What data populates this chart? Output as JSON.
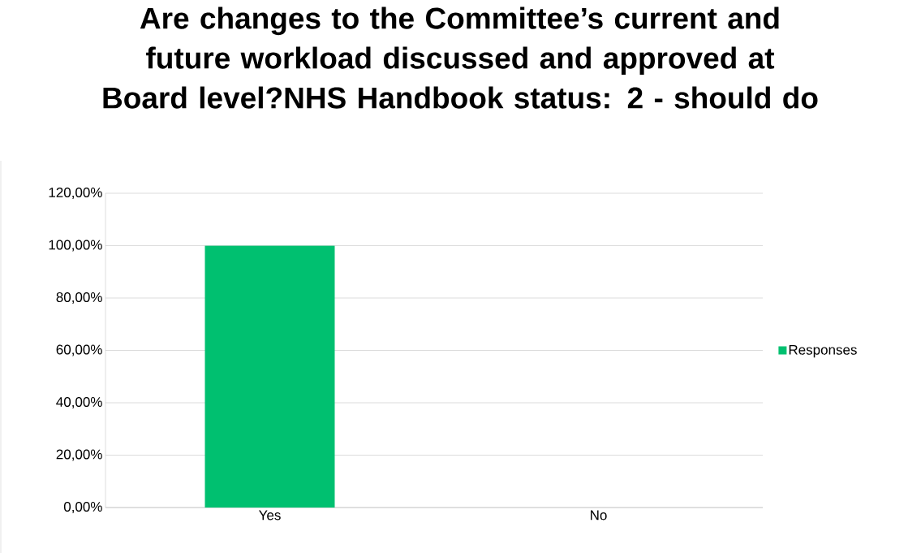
{
  "chart_data": {
    "type": "bar",
    "title": "Are changes to the Committee’s current and future workload discussed and approved at Board level?NHS Handbook status: 2 - should do",
    "categories": [
      "Yes",
      "No"
    ],
    "series": [
      {
        "name": "Responses",
        "color": "#00c070",
        "values": [
          100,
          0
        ]
      }
    ],
    "ylim": [
      0,
      120
    ],
    "yticks": [
      {
        "value": 0,
        "label": "0,00%"
      },
      {
        "value": 20,
        "label": "20,00%"
      },
      {
        "value": 40,
        "label": "40,00%"
      },
      {
        "value": 60,
        "label": "60,00%"
      },
      {
        "value": 80,
        "label": "80,00%"
      },
      {
        "value": 100,
        "label": "100,00%"
      },
      {
        "value": 120,
        "label": "120,00%"
      }
    ],
    "grid": "y",
    "legend": "right"
  }
}
